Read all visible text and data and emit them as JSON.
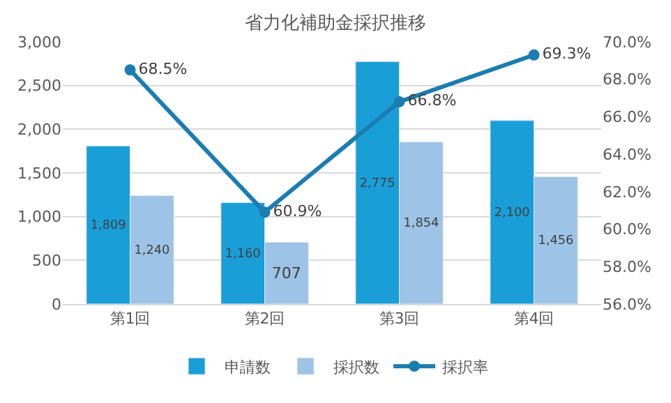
{
  "chart_data": {
    "type": "bar",
    "title": "省力化補助金採択推移",
    "categories": [
      "第1回",
      "第2回",
      "第3回",
      "第4回"
    ],
    "series": [
      {
        "name": "申請数",
        "color": "#1a9ed8",
        "values": [
          1809,
          1160,
          2775,
          2100
        ],
        "value_labels": [
          "1,809",
          "1,160",
          "2,775",
          "2,100"
        ]
      },
      {
        "name": "採択数",
        "color": "#9dc3e6",
        "values": [
          1240,
          707,
          1854,
          1456
        ],
        "value_labels": [
          "1,240",
          "707",
          "1,854",
          "1,456"
        ]
      },
      {
        "name": "採択率",
        "type": "line",
        "axis": "y2",
        "color": "#1b7db0",
        "marker": "circle",
        "values": [
          68.5,
          60.9,
          66.8,
          69.3
        ],
        "value_labels": [
          "68.5%",
          "60.9%",
          "66.8%",
          "69.3%"
        ]
      }
    ],
    "ylim": [
      0,
      3000
    ],
    "yticks": [
      0,
      500,
      {
        "value": 1000,
        "label": "1,000"
      },
      {
        "value": 1500,
        "label": "1,500"
      },
      {
        "value": 2000,
        "label": "2,000"
      },
      {
        "value": 2500,
        "label": "2,500"
      },
      {
        "value": 3000,
        "label": "3,000"
      }
    ],
    "y2lim": [
      56,
      70
    ],
    "y2ticks": [
      {
        "value": 56,
        "label": "56.0%"
      },
      {
        "value": 58,
        "label": "58.0%"
      },
      {
        "value": 60,
        "label": "60.0%"
      },
      {
        "value": 62,
        "label": "62.0%"
      },
      {
        "value": 64,
        "label": "64.0%"
      },
      {
        "value": 66,
        "label": "66.0%"
      },
      {
        "value": 68,
        "label": "68.0%"
      },
      {
        "value": 70,
        "label": "70.0%"
      }
    ],
    "grid": "y",
    "legend": "bottom"
  }
}
